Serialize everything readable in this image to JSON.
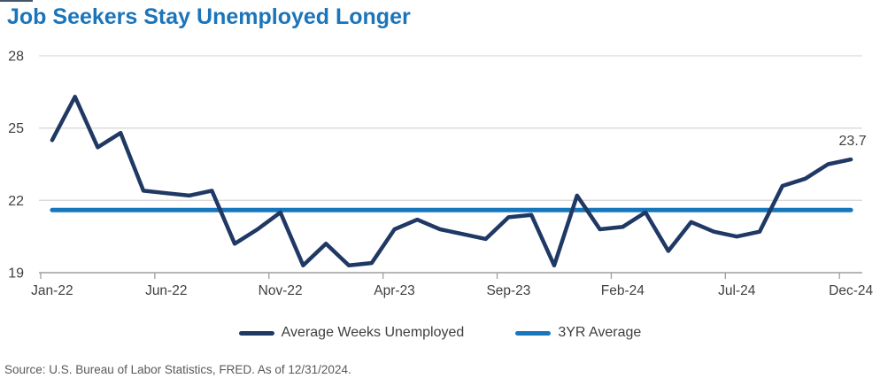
{
  "title": "Job Seekers Stay Unemployed Longer",
  "source_note": "Source: U.S. Bureau of Labor Statistics, FRED. As of 12/31/2024.",
  "colors": {
    "title_blue": "#1b75bb",
    "series_navy": "#1f3864",
    "series_blue": "#1777bd",
    "gridline": "#d9d9d9",
    "axis_line": "#9e9e9e",
    "tick_label": "#404040",
    "end_label": "#3f3f3f",
    "footer_gray": "#595959",
    "corner_accent": "#44546a"
  },
  "chart_data": {
    "type": "line",
    "title": "Job Seekers Stay Unemployed Longer",
    "xlabel": "",
    "ylabel": "",
    "ylim": [
      19,
      28
    ],
    "yticks": [
      19,
      22,
      25,
      28
    ],
    "grid": "horizontal",
    "legend_position": "bottom",
    "categories": [
      "Jan-22",
      "Feb-22",
      "Mar-22",
      "Apr-22",
      "May-22",
      "Jun-22",
      "Jul-22",
      "Aug-22",
      "Sep-22",
      "Oct-22",
      "Nov-22",
      "Dec-22",
      "Jan-23",
      "Feb-23",
      "Mar-23",
      "Apr-23",
      "May-23",
      "Jun-23",
      "Jul-23",
      "Aug-23",
      "Sep-23",
      "Oct-23",
      "Nov-23",
      "Dec-23",
      "Jan-24",
      "Feb-24",
      "Mar-24",
      "Apr-24",
      "May-24",
      "Jun-24",
      "Jul-24",
      "Aug-24",
      "Sep-24",
      "Oct-24",
      "Nov-24",
      "Dec-24"
    ],
    "xtick_labels": [
      "Jan-22",
      "Jun-22",
      "Nov-22",
      "Apr-23",
      "Sep-23",
      "Feb-24",
      "Jul-24",
      "Dec-24"
    ],
    "xtick_indices": [
      0,
      5,
      10,
      15,
      20,
      25,
      30,
      35
    ],
    "series": [
      {
        "name": "Average Weeks Unemployed",
        "color": "#1f3864",
        "values": [
          24.5,
          26.3,
          24.2,
          24.8,
          22.4,
          22.3,
          22.2,
          22.4,
          20.2,
          20.8,
          21.5,
          19.3,
          20.2,
          19.3,
          19.4,
          20.8,
          21.2,
          20.8,
          20.6,
          20.4,
          21.3,
          21.4,
          19.3,
          22.2,
          20.8,
          20.9,
          21.5,
          19.9,
          21.1,
          20.7,
          20.5,
          20.7,
          22.6,
          22.9,
          23.5,
          23.7
        ]
      },
      {
        "name": "3YR Average",
        "color": "#1777bd",
        "average_value": 21.6
      }
    ],
    "end_label": "23.7"
  }
}
